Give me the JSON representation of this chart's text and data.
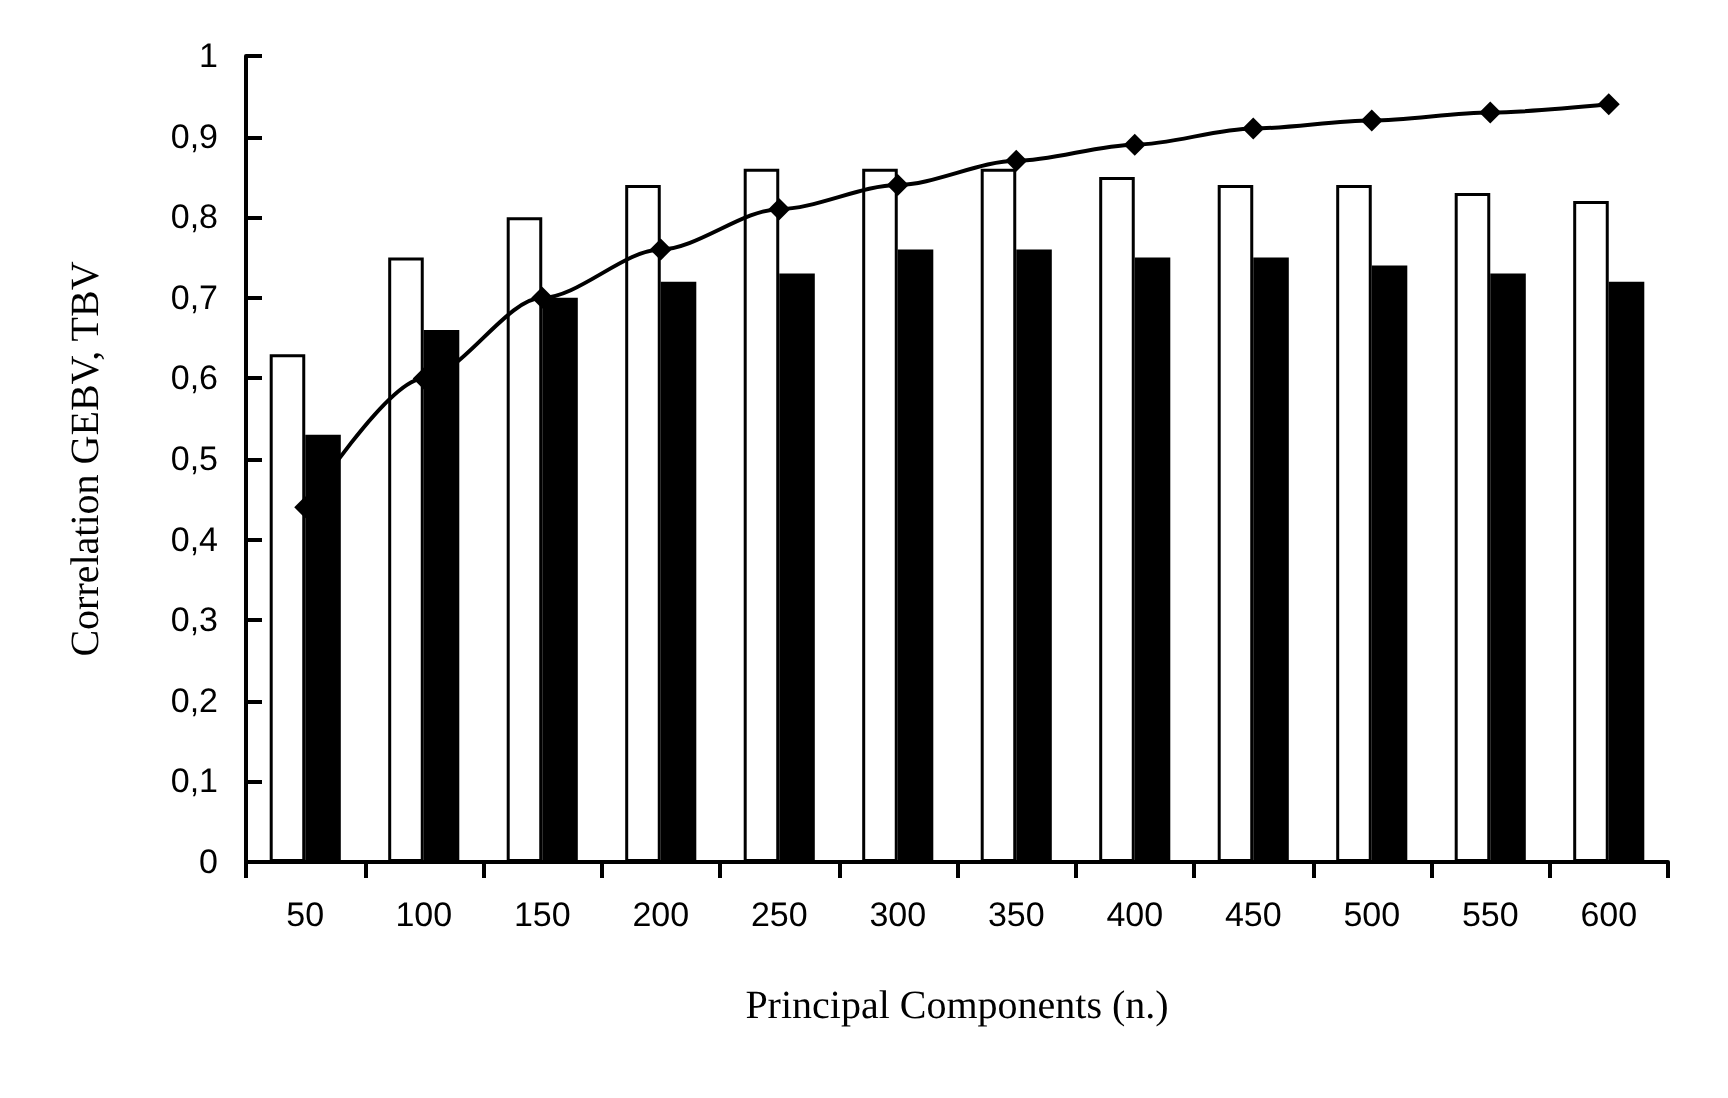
{
  "chart_data": {
    "type": "bar",
    "xlabel": "Principal Components (n.)",
    "ylabel": "Correlation GEBV, TBV",
    "categories": [
      "50",
      "100",
      "150",
      "200",
      "250",
      "300",
      "350",
      "400",
      "450",
      "500",
      "550",
      "600"
    ],
    "series": [
      {
        "color": "#ffffff",
        "values": [
          0.63,
          0.75,
          0.8,
          0.84,
          0.86,
          0.86,
          0.86,
          0.85,
          0.84,
          0.84,
          0.83,
          0.82
        ]
      },
      {
        "color": "#000000",
        "values": [
          0.53,
          0.66,
          0.7,
          0.72,
          0.73,
          0.76,
          0.76,
          0.75,
          0.75,
          0.74,
          0.73,
          0.72
        ]
      },
      {
        "type": "line",
        "color": "#000000",
        "marker": "diamond",
        "values": [
          0.44,
          0.6,
          0.7,
          0.76,
          0.81,
          0.84,
          0.87,
          0.89,
          0.91,
          0.92,
          0.93,
          0.94
        ]
      }
    ],
    "ylim": [
      0,
      1
    ],
    "yticks": [
      0,
      {
        "value": 0.1,
        "label": "0,1"
      },
      {
        "value": 0.2,
        "label": "0,2"
      },
      {
        "value": 0.3,
        "label": "0,3"
      },
      {
        "value": 0.4,
        "label": "0,4"
      },
      {
        "value": 0.5,
        "label": "0,5"
      },
      {
        "value": 0.6,
        "label": "0,6"
      },
      {
        "value": 0.7,
        "label": "0,7"
      },
      {
        "value": 0.8,
        "label": "0,8"
      },
      {
        "value": 0.9,
        "label": "0,9"
      },
      1
    ],
    "grid": false
  }
}
